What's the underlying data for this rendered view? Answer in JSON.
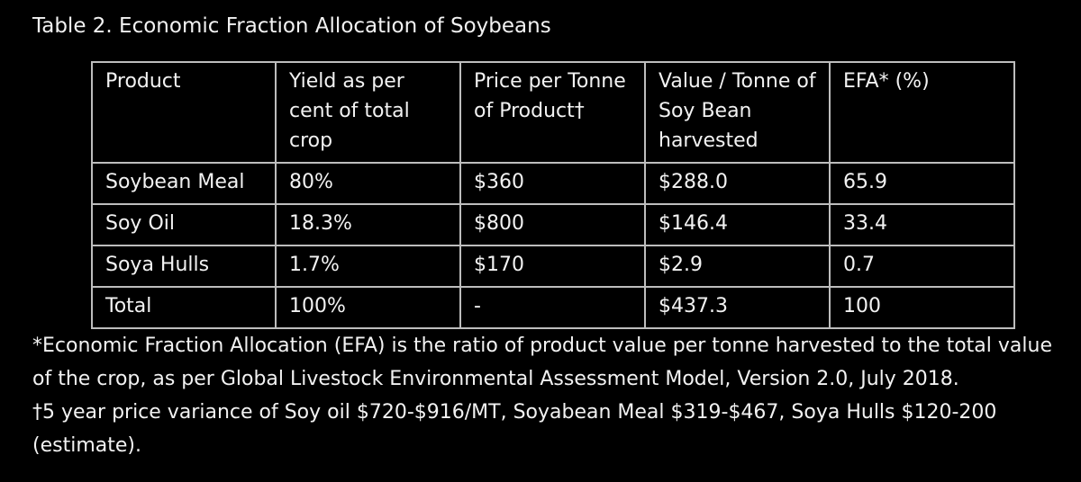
{
  "title": "Table 2. Economic Fraction Allocation of Soybeans",
  "table": {
    "headers": [
      "Product",
      "Yield as per cent of total crop",
      "Price per Tonne of Product†",
      "Value / Tonne of Soy Bean harvested",
      "EFA* (%)"
    ],
    "rows": [
      [
        "Soybean Meal",
        "80%",
        "$360",
        "$288.0",
        "65.9"
      ],
      [
        "Soy Oil",
        "18.3%",
        "$800",
        "$146.4",
        "33.4"
      ],
      [
        "Soya Hulls",
        "1.7%",
        "$170",
        "$2.9",
        "0.7"
      ],
      [
        "Total",
        "100%",
        "-",
        "$437.3",
        "100"
      ]
    ]
  },
  "footnotes": {
    "efa": "*Economic Fraction Allocation (EFA) is the ratio of product value per tonne harvested to the total value of the crop, as per Global Livestock Environmental Assessment Model, Version 2.0, July 2018.",
    "price": "†5 year price variance of Soy oil $720-$916/MT, Soyabean Meal $319-$467, Soya Hulls $120-200 (estimate)."
  }
}
